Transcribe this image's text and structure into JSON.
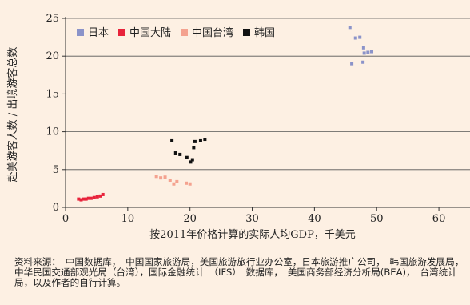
{
  "chart_data": {
    "type": "scatter",
    "xlabel": "按2011年价格计算的实际人均GDP，千美元",
    "ylabel": "赴美游客人数 / 出境游客总数",
    "xlim": [
      0,
      65
    ],
    "ylim": [
      0,
      25
    ],
    "xticks": [
      0,
      10,
      20,
      30,
      40,
      50,
      60
    ],
    "yticks": [
      0,
      5,
      10,
      15,
      20,
      25
    ],
    "grid": "horizontal",
    "legend_position": "top-left",
    "series": [
      {
        "name": "日本",
        "color": "#8b93c9",
        "points": [
          [
            45.7,
            23.8
          ],
          [
            46.6,
            22.4
          ],
          [
            47.3,
            22.5
          ],
          [
            47.9,
            21.1
          ],
          [
            48.0,
            20.4
          ],
          [
            48.6,
            20.5
          ],
          [
            49.2,
            20.6
          ],
          [
            46.0,
            19.0
          ],
          [
            47.8,
            19.2
          ]
        ]
      },
      {
        "name": "中国大陆",
        "color": "#e8233b",
        "points": [
          [
            2.1,
            1.1
          ],
          [
            2.5,
            1.0
          ],
          [
            2.9,
            1.1
          ],
          [
            3.3,
            1.1
          ],
          [
            3.7,
            1.2
          ],
          [
            4.1,
            1.2
          ],
          [
            4.6,
            1.3
          ],
          [
            5.1,
            1.4
          ],
          [
            5.6,
            1.5
          ],
          [
            6.0,
            1.7
          ]
        ]
      },
      {
        "name": "中国台湾",
        "color": "#f4a28f",
        "points": [
          [
            14.6,
            4.1
          ],
          [
            15.3,
            3.9
          ],
          [
            16.0,
            4.0
          ],
          [
            16.8,
            3.6
          ],
          [
            17.4,
            3.1
          ],
          [
            17.9,
            3.4
          ],
          [
            19.4,
            3.2
          ],
          [
            20.0,
            3.1
          ]
        ]
      },
      {
        "name": "韩国",
        "color": "#111111",
        "points": [
          [
            17.1,
            8.8
          ],
          [
            17.7,
            7.2
          ],
          [
            18.4,
            7.0
          ],
          [
            19.5,
            6.6
          ],
          [
            20.1,
            6.0
          ],
          [
            20.4,
            6.3
          ],
          [
            20.6,
            7.9
          ],
          [
            20.8,
            8.7
          ],
          [
            21.7,
            8.8
          ],
          [
            22.4,
            9.0
          ]
        ]
      }
    ]
  },
  "source_note": "资料来源：　中国数据库，　中国国家旅游局，美国旅游旅行业办公室，日本旅游推广公司，　韩国旅游发展局，中华民国交通部观光局（台湾），国际金融统计　（IFS）　数据库，　美国商务部经济分析局(BEA)，　台湾统计局，以及作者的自行计算。"
}
